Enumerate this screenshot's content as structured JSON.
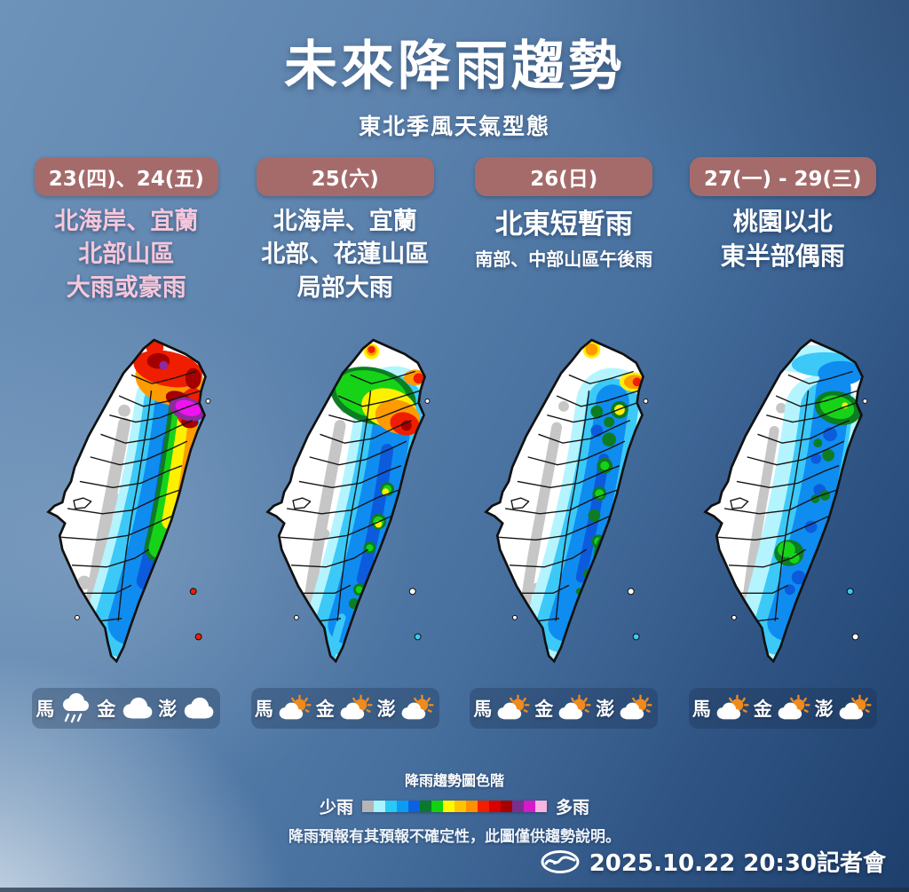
{
  "title": "未來降雨趨勢",
  "subtitle": "東北季風天氣型態",
  "colors": {
    "badge_bg": "#a56b6b",
    "pink_text": "#f6c6da"
  },
  "columns": [
    {
      "badge": "23(四)、24(五)",
      "desc_lines": [
        "北海岸、宜蘭",
        "北部山區",
        "大雨或豪雨"
      ],
      "islands": [
        {
          "label": "馬",
          "type": "rain",
          "icon": "rain-cloud-icon"
        },
        {
          "label": "金",
          "type": "cloud",
          "icon": "cloud-icon"
        },
        {
          "label": "澎",
          "type": "cloud",
          "icon": "cloud-icon"
        }
      ]
    },
    {
      "badge": "25(六)",
      "desc_lines": [
        "北海岸、宜蘭",
        "北部、花蓮山區",
        "局部大雨"
      ],
      "islands": [
        {
          "label": "馬",
          "type": "suncloud",
          "icon": "sun-behind-cloud-icon"
        },
        {
          "label": "金",
          "type": "suncloud",
          "icon": "sun-behind-cloud-icon"
        },
        {
          "label": "澎",
          "type": "suncloud",
          "icon": "sun-behind-cloud-icon"
        }
      ]
    },
    {
      "badge": "26(日)",
      "desc_lines": [
        "北東短暫雨",
        "南部、中部山區午後雨"
      ],
      "islands": [
        {
          "label": "馬",
          "type": "suncloud",
          "icon": "sun-behind-cloud-icon"
        },
        {
          "label": "金",
          "type": "suncloud",
          "icon": "sun-behind-cloud-icon"
        },
        {
          "label": "澎",
          "type": "suncloud",
          "icon": "sun-behind-cloud-icon"
        }
      ]
    },
    {
      "badge": "27(一) - 29(三)",
      "desc_lines": [
        "桃園以北",
        "東半部偶雨"
      ],
      "islands": [
        {
          "label": "馬",
          "type": "suncloud",
          "icon": "sun-behind-cloud-icon"
        },
        {
          "label": "金",
          "type": "suncloud",
          "icon": "sun-behind-cloud-icon"
        },
        {
          "label": "澎",
          "type": "suncloud",
          "icon": "sun-behind-cloud-icon"
        }
      ]
    }
  ],
  "legend": {
    "title": "降雨趨勢圖色階",
    "left_label": "少雨",
    "right_label": "多雨",
    "colors": [
      "#b5b5b5",
      "#a8f3ff",
      "#29c8f7",
      "#0b9cf2",
      "#0b62e0",
      "#0a7a2a",
      "#12d10f",
      "#fdf800",
      "#ffc400",
      "#ff9000",
      "#f51d00",
      "#d90000",
      "#a80000",
      "#7a2f8f",
      "#d619c9",
      "#f9b4df"
    ],
    "disclaimer": "降雨預報有其預報不確定性，此圖僅供趨勢說明。"
  },
  "footer": {
    "timestamp": "2025.10.22 20:30記者會"
  }
}
